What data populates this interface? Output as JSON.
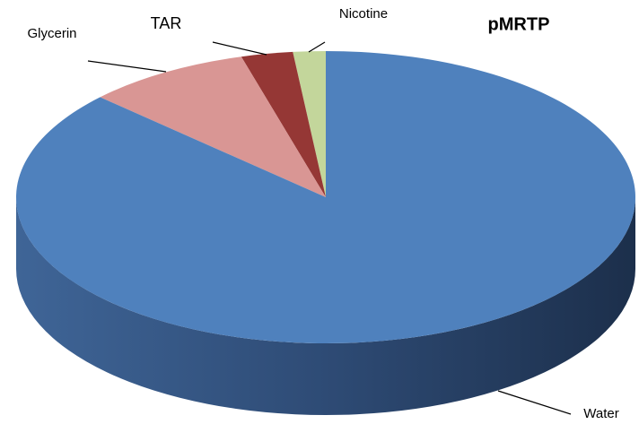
{
  "chart_data": {
    "type": "pie3d",
    "title": "pMRTP",
    "categories": [
      "Nicotine",
      "TAR",
      "Glycerin",
      "Water"
    ],
    "values": [
      1.7,
      2.7,
      8.6,
      87
    ],
    "colors": [
      "#c3d69b",
      "#953735",
      "#d99694",
      "#4f81bd"
    ]
  }
}
